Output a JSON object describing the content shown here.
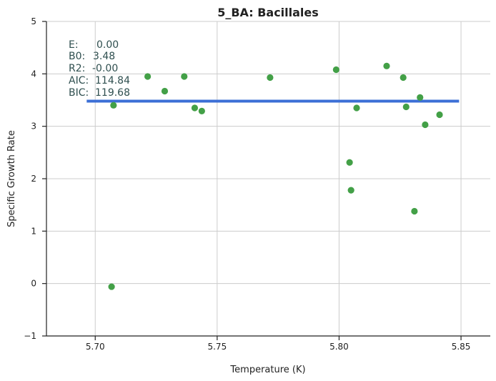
{
  "chart_data": {
    "type": "scatter",
    "title": "5_BA: Bacillales",
    "xlabel": "Temperature (K)",
    "ylabel": "Specific Growth Rate",
    "xlim": [
      5.68,
      5.862
    ],
    "ylim": [
      -1,
      5
    ],
    "xticks": [
      5.7,
      5.75,
      5.8,
      5.85
    ],
    "xtick_labels": [
      "5.70",
      "5.75",
      "5.80",
      "5.85"
    ],
    "yticks": [
      -1,
      0,
      1,
      2,
      3,
      4,
      5
    ],
    "ytick_labels": [
      "−1",
      "0",
      "1",
      "2",
      "3",
      "4",
      "5"
    ],
    "grid": true,
    "points": {
      "color": "#43a047",
      "x": [
        5.7067,
        5.7075,
        5.7215,
        5.7285,
        5.7365,
        5.7408,
        5.7437,
        5.7717,
        5.7988,
        5.8043,
        5.8049,
        5.8072,
        5.8195,
        5.8263,
        5.8275,
        5.8309,
        5.8332,
        5.8353,
        5.8412
      ],
      "y": [
        -0.06,
        3.4,
        3.95,
        3.67,
        3.95,
        3.35,
        3.29,
        3.93,
        4.08,
        2.31,
        1.78,
        3.35,
        4.15,
        3.93,
        3.37,
        1.38,
        3.55,
        3.03,
        3.22
      ]
    },
    "fit_line": {
      "color": "#3c6fd6",
      "x": [
        5.6965,
        5.8492
      ],
      "y": [
        3.48,
        3.48
      ]
    },
    "annotations": [
      {
        "label": "E:",
        "value": "0.00"
      },
      {
        "label": "B0:",
        "value": "3.48"
      },
      {
        "label": "R2:",
        "value": "-0.00"
      },
      {
        "label": "AIC:",
        "value": "114.84"
      },
      {
        "label": "BIC:",
        "value": "119.68"
      }
    ]
  }
}
